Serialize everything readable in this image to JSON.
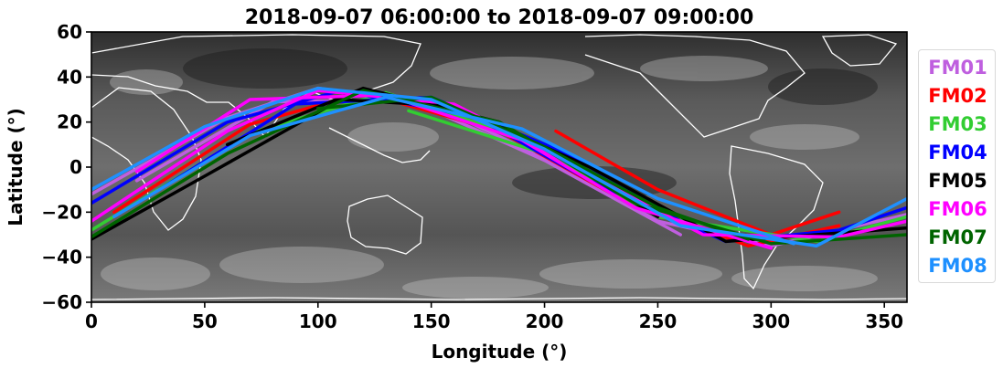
{
  "chart_data": {
    "type": "line",
    "title": "2018-09-07 06:00:00 to 2018-09-07 09:00:00",
    "xlabel": "Longitude (°)",
    "ylabel": "Latitude (°)",
    "xlim": [
      0,
      360
    ],
    "ylim": [
      -60,
      60
    ],
    "xticks": [
      "0",
      "50",
      "100",
      "150",
      "200",
      "250",
      "300",
      "350"
    ],
    "yticks": [
      "60",
      "40",
      "20",
      "0",
      "−20",
      "−40",
      "−60"
    ],
    "xtick_values": [
      0,
      50,
      100,
      150,
      200,
      250,
      300,
      350
    ],
    "ytick_values": [
      60,
      40,
      20,
      0,
      -20,
      -40,
      -60
    ],
    "background": "grayscale infrared satellite imagery with white coastlines",
    "legend_position": "right",
    "track_model": "sinusoidal ground tracks, latitude ≈ 35 × sin(longitude − phase), phase ≈ 17°–40°",
    "series": [
      {
        "name": "FM01",
        "color": "#bf5fdf",
        "tracks": [
          {
            "x": [
              0,
              60,
              100,
              150,
              200,
              250,
              300,
              360
            ],
            "y": [
              -12,
              22,
              35,
              28,
              4,
              -24,
              -35,
              -21
            ]
          },
          {
            "x": [
              20,
              80,
              140,
              200,
              260
            ],
            "y": [
              -6,
              29,
              30,
              3,
              -30
            ]
          }
        ]
      },
      {
        "name": "FM02",
        "color": "#ff0000",
        "tracks": [
          {
            "x": [
              10,
              70,
              120,
              180,
              230,
              290,
              330
            ],
            "y": [
              -20,
              19,
              33,
              16,
              -12,
              -35,
              -26
            ]
          },
          {
            "x": [
              205,
              250,
              300,
              330
            ],
            "y": [
              16,
              -10,
              -30,
              -20
            ]
          }
        ]
      },
      {
        "name": "FM03",
        "color": "#32cd32",
        "tracks": [
          {
            "x": [
              0,
              70,
              130,
              190,
              250,
              320,
              360
            ],
            "y": [
              -28,
              15,
              33,
              13,
              -22,
              -33,
              -22
            ]
          },
          {
            "x": [
              140,
              200,
              240
            ],
            "y": [
              25,
              6,
              -18
            ]
          }
        ]
      },
      {
        "name": "FM04",
        "color": "#0000ff",
        "tracks": [
          {
            "x": [
              0,
              60,
              110,
              170,
              220,
              280,
              330,
              360
            ],
            "y": [
              -16,
              20,
              34,
              22,
              -6,
              -33,
              -28,
              -18
            ]
          },
          {
            "x": [
              30,
              90,
              150,
              210,
              270
            ],
            "y": [
              -10,
              28,
              31,
              6,
              -30
            ]
          }
        ]
      },
      {
        "name": "FM05",
        "color": "#000000",
        "tracks": [
          {
            "x": [
              0,
              50,
              110,
              160,
              220,
              280,
              360
            ],
            "y": [
              -32,
              -4,
              30,
              27,
              0,
              -33,
              -27
            ]
          },
          {
            "x": [
              60,
              120,
              180,
              250
            ],
            "y": [
              10,
              35,
              20,
              -22
            ]
          }
        ]
      },
      {
        "name": "FM06",
        "color": "#ff00ff",
        "tracks": [
          {
            "x": [
              0,
              60,
              100,
              160,
              210,
              270,
              330,
              360
            ],
            "y": [
              -24,
              16,
              34,
              28,
              2,
              -30,
              -31,
              -24
            ]
          },
          {
            "x": [
              20,
              70,
              130,
              190,
              240,
              300
            ],
            "y": [
              -2,
              30,
              32,
              12,
              -18,
              -36
            ]
          }
        ]
      },
      {
        "name": "FM07",
        "color": "#006400",
        "tracks": [
          {
            "x": [
              0,
              60,
              120,
              180,
              240,
              300,
              360
            ],
            "y": [
              -31,
              6,
              34,
              20,
              -16,
              -34,
              -30
            ]
          },
          {
            "x": [
              100,
              150,
              200,
              250,
              290
            ],
            "y": [
              26,
              31,
              9,
              -18,
              -32
            ]
          }
        ]
      },
      {
        "name": "FM08",
        "color": "#1e90ff",
        "tracks": [
          {
            "x": [
              0,
              50,
              100,
              150,
              200,
              260,
              320,
              360
            ],
            "y": [
              -10,
              18,
              35,
              30,
              8,
              -26,
              -35,
              -14
            ]
          },
          {
            "x": [
              10,
              70,
              130,
              190,
              250,
              310
            ],
            "y": [
              -22,
              14,
              31,
              17,
              -14,
              -34
            ]
          }
        ]
      }
    ]
  }
}
